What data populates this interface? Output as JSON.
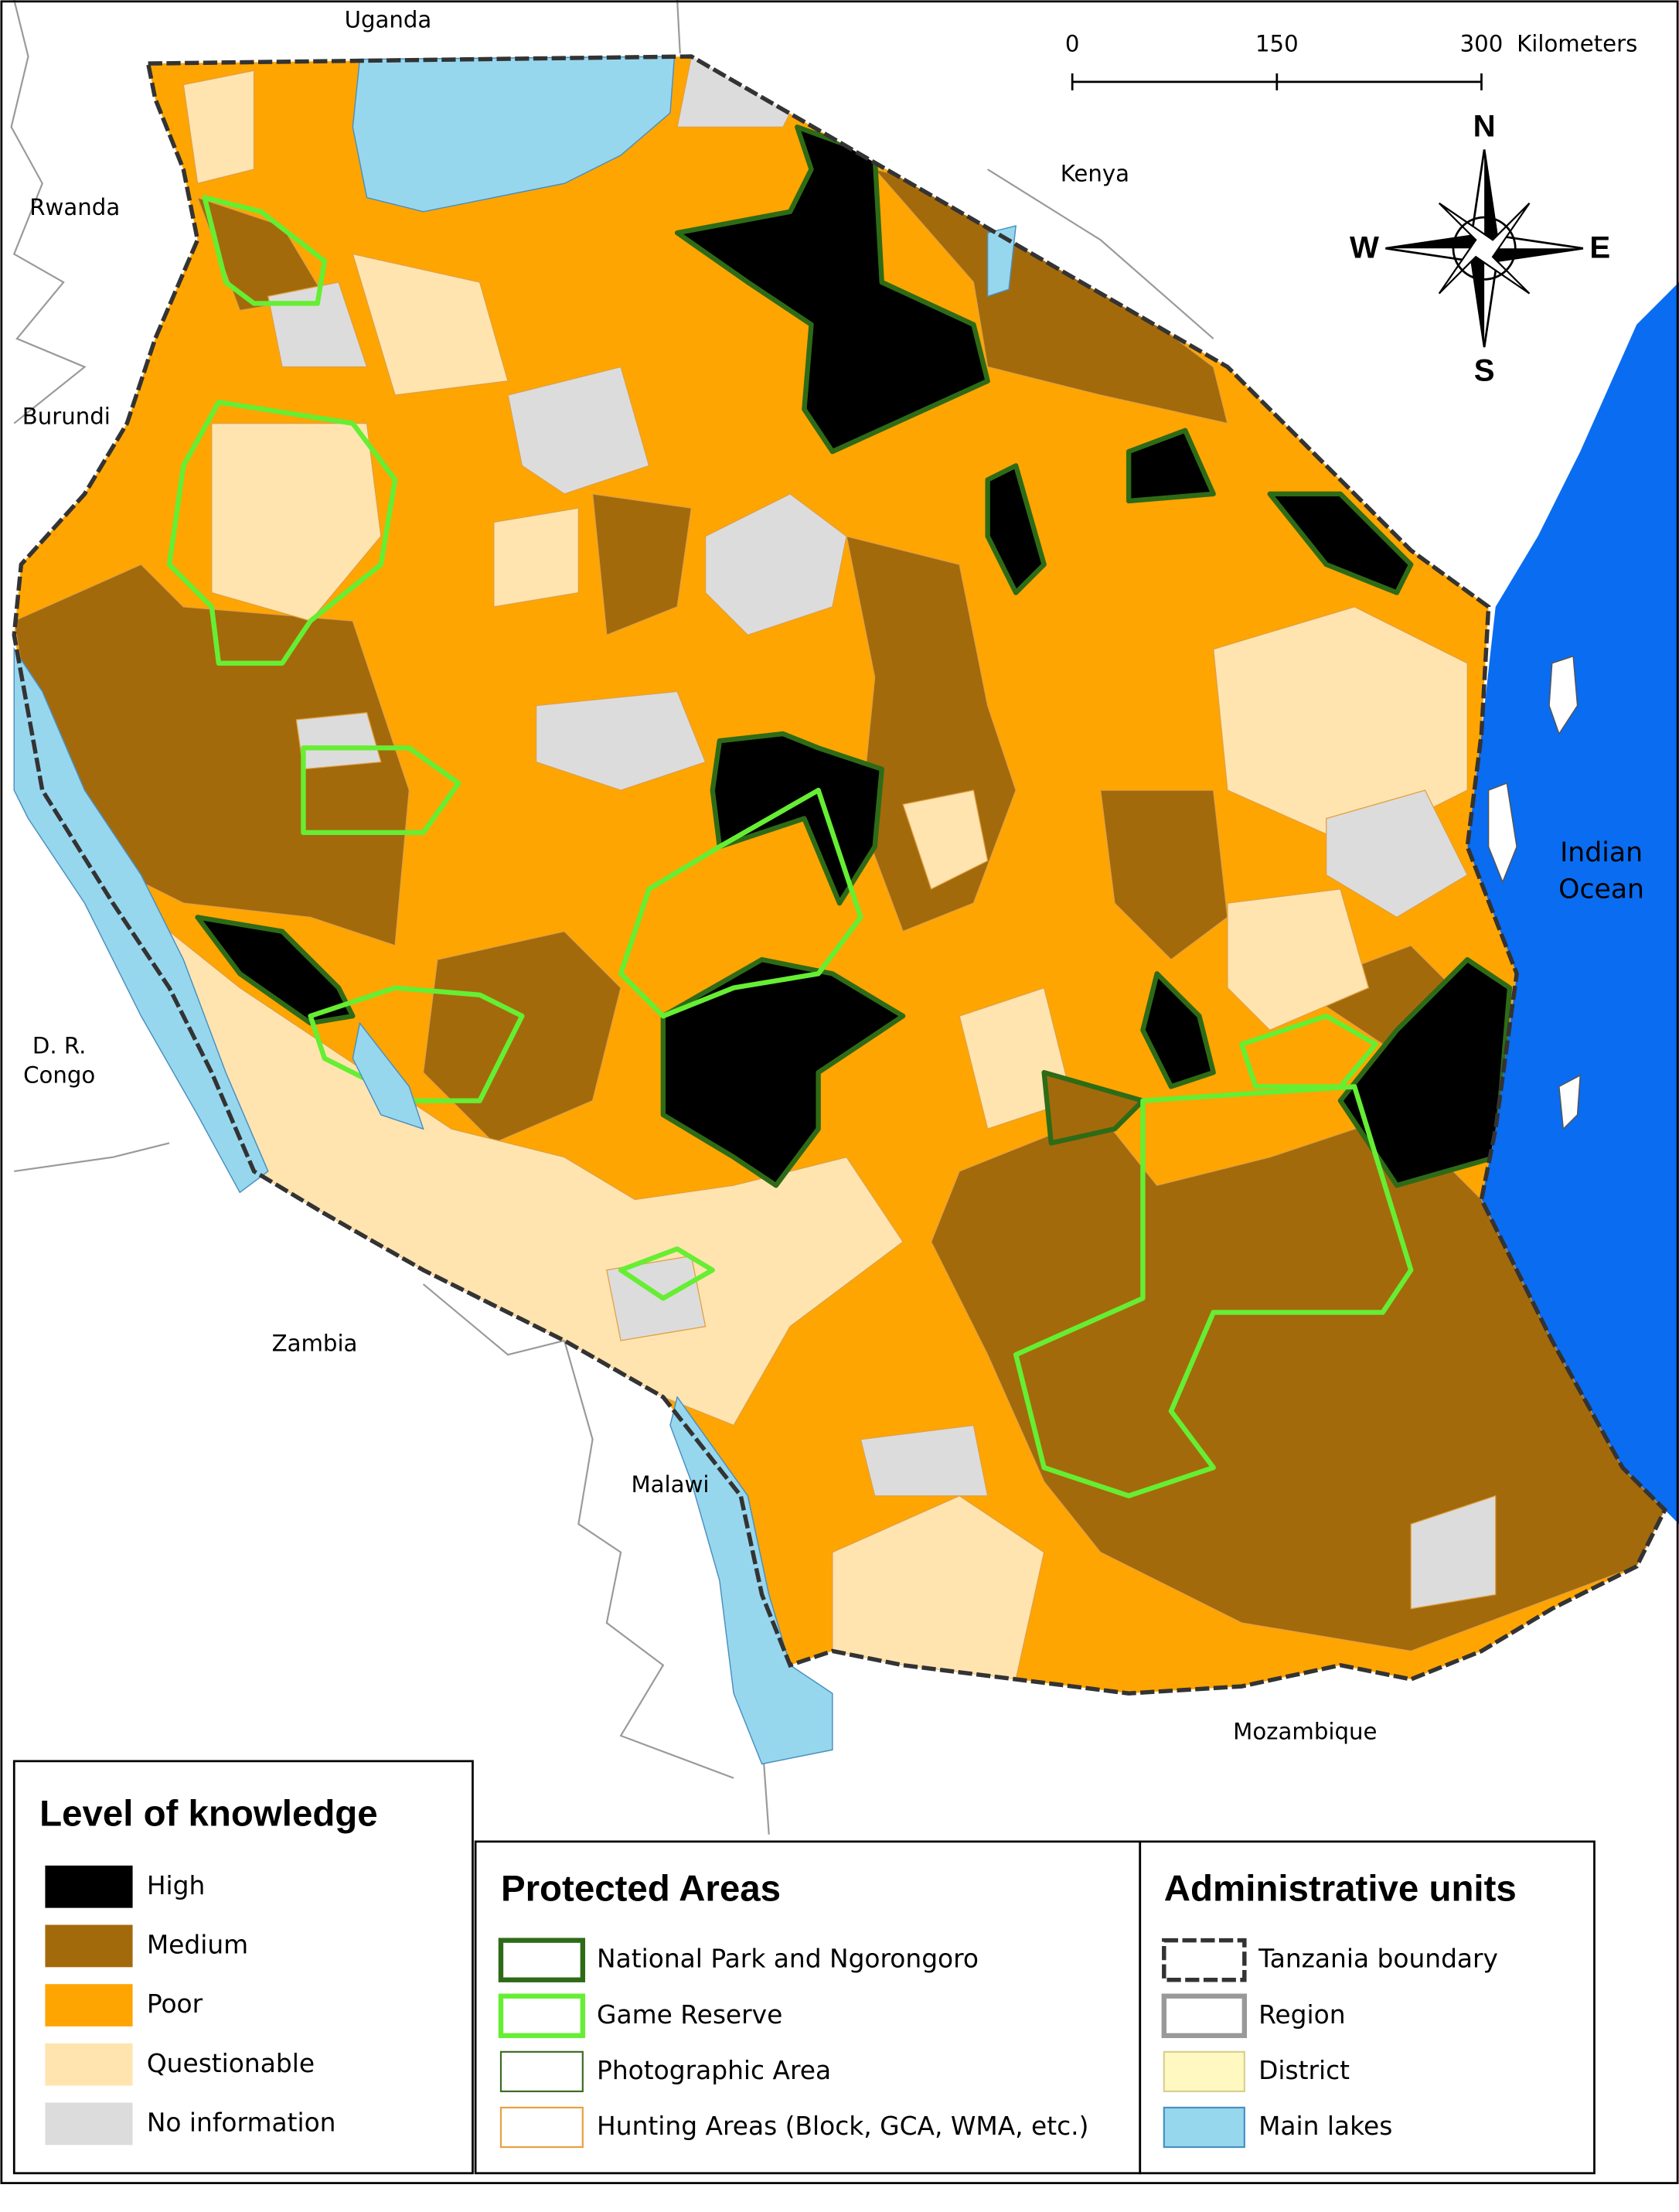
{
  "map_labels": [
    [
      "Uganda"
    ],
    [
      "Rwanda"
    ],
    [
      "Burundi"
    ],
    [
      "Kenya"
    ],
    [
      "D. R.",
      "Congo"
    ],
    [
      "Zambia"
    ],
    [
      "Malawi"
    ],
    [
      "Mozambique"
    ],
    [
      "Indian",
      "Ocean"
    ]
  ],
  "scale_bar": {
    "ticks": [
      0,
      150,
      300
    ],
    "unit": "Kilometers"
  },
  "compass": {
    "north": "N",
    "east": "E",
    "south": "S",
    "west": "W"
  },
  "legends": [
    {
      "title": "Level of knowledge",
      "items": [
        {
          "label": "High",
          "fill": "#000000"
        },
        {
          "label": "Medium",
          "fill": "#a36a0c"
        },
        {
          "label": "Poor",
          "fill": "#ffa502"
        },
        {
          "label": "Questionable",
          "fill": "#ffe4b0"
        },
        {
          "label": "No information",
          "fill": "#dcdcdc"
        }
      ]
    },
    {
      "title": "Protected Areas",
      "items": [
        {
          "label": "National Park and Ngorongoro",
          "stroke": "#2e6b17",
          "line": "thick"
        },
        {
          "label": "Game Reserve",
          "stroke": "#66ee33",
          "line": "thick"
        },
        {
          "label": "Photographic Area",
          "stroke": "#3d6b22",
          "line": "thin"
        },
        {
          "label": "Hunting Areas (Block, GCA, WMA, etc.)",
          "stroke": "#e8a040",
          "line": "thin"
        }
      ]
    },
    {
      "title": "Administrative units",
      "items": [
        {
          "label": "Tanzania boundary",
          "stroke": "#333333",
          "line": "dashed"
        },
        {
          "label": "Region",
          "stroke": "#999999",
          "line": "thick"
        },
        {
          "label": "District",
          "fill": "#fff8c0",
          "stroke": "#d8d090",
          "line": "thin"
        },
        {
          "label": "Main lakes",
          "fill": "#97d7ee",
          "stroke": "#4a8fc0",
          "line": "thin"
        }
      ]
    }
  ]
}
